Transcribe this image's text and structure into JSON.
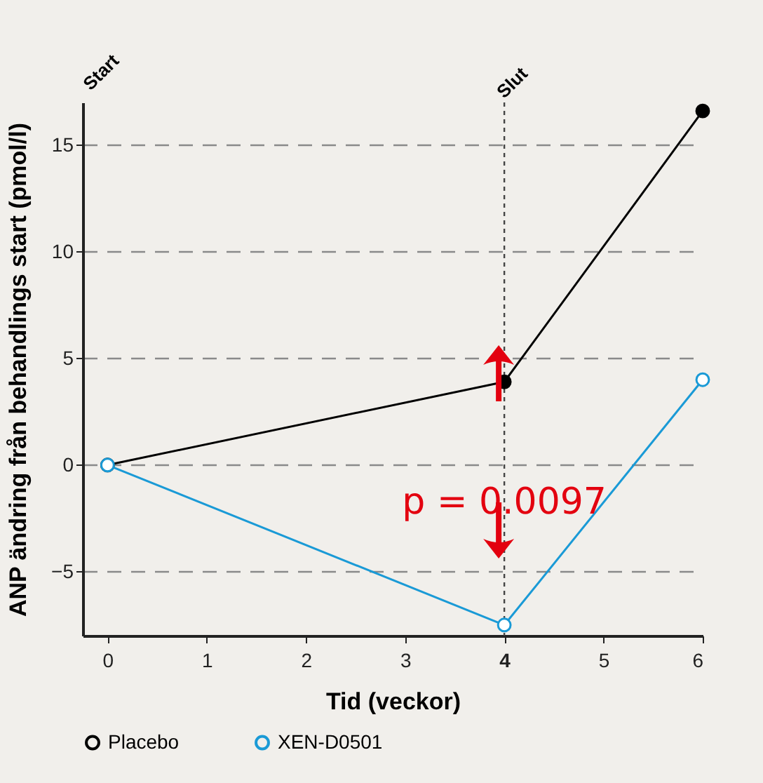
{
  "chart_data": {
    "type": "line",
    "xlabel": "Tid (veckor)",
    "ylabel": "ANP ändring från behandlings start (pmol/l)",
    "x": [
      0,
      4,
      6
    ],
    "series": [
      {
        "name": "Placebo",
        "color": "#000000",
        "values": [
          0,
          3.9,
          16.6
        ]
      },
      {
        "name": "XEN-D0501",
        "color": "#1a9ad6",
        "values": [
          0,
          -7.5,
          4.0
        ]
      }
    ],
    "xlim": [
      -0.25,
      6
    ],
    "xticks": [
      0,
      1,
      2,
      3,
      4,
      5,
      6
    ],
    "ylim": [
      -8,
      17
    ],
    "yticks": [
      -5,
      0,
      5,
      10,
      15
    ],
    "grid": "y",
    "legend": "bottom",
    "marker": "circle",
    "line_style": "solid",
    "ref_lines": [
      {
        "axis": "x",
        "value": 4,
        "label": "Slut",
        "line_style": "dotted"
      }
    ],
    "annotations": [
      "Start",
      "p = 0.0097"
    ]
  }
}
